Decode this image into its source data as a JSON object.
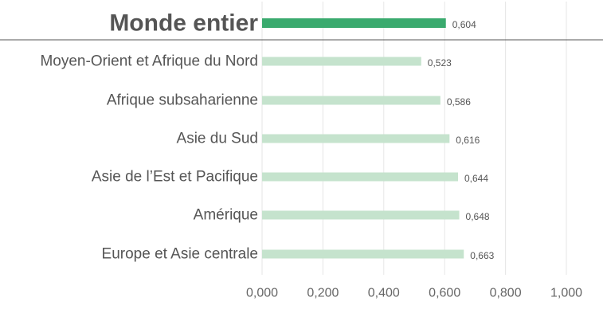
{
  "chart_data": {
    "type": "bar",
    "orientation": "horizontal",
    "categories": [
      "Monde entier",
      "Moyen-Orient et Afrique du Nord",
      "Afrique subsaharienne",
      "Asie du Sud",
      "Asie de l’Est et Pacifique",
      "Amérique",
      "Europe et Asie centrale"
    ],
    "values": [
      0.604,
      0.523,
      0.586,
      0.616,
      0.644,
      0.648,
      0.663
    ],
    "value_labels": [
      "0,604",
      "0,523",
      "0,586",
      "0,616",
      "0,644",
      "0,648",
      "0,663"
    ],
    "highlight_index": 0,
    "xlim": [
      0,
      1.0
    ],
    "xticks": [
      0,
      0.2,
      0.4,
      0.6,
      0.8,
      1.0
    ],
    "xtick_labels": [
      "0,000",
      "0,200",
      "0,400",
      "0,600",
      "0,800",
      "1,000"
    ],
    "grid": "vertical",
    "legend": "none",
    "colors": {
      "highlight_bar": "#3aaa6e",
      "bar": "#c5e3cd",
      "gridline": "#e6e6e6",
      "separator": "#555555",
      "text": "#555555"
    }
  }
}
